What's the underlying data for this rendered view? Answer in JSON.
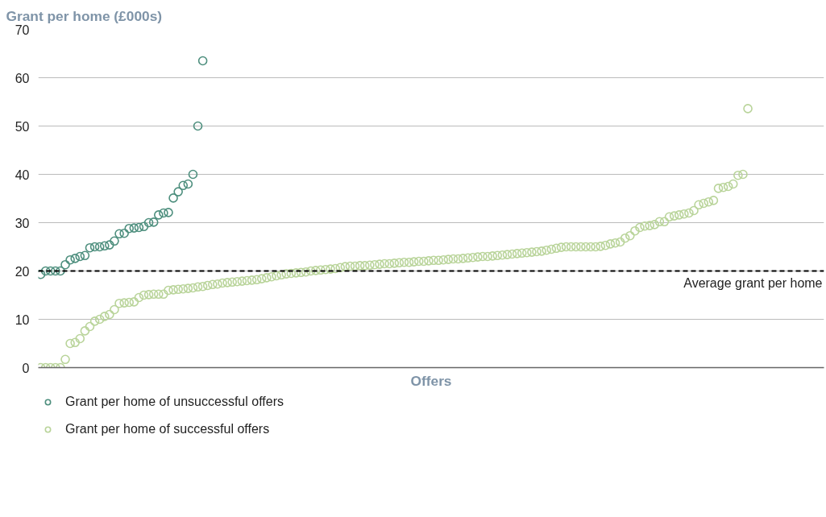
{
  "chart_data": {
    "type": "scatter",
    "title": "Grant per home (£000s)",
    "xlabel": "Offers",
    "categories": [
      null,
      null,
      null,
      null,
      null,
      null,
      null,
      null,
      null,
      null,
      null,
      null,
      null,
      null,
      null,
      null,
      null,
      null,
      null,
      null,
      null,
      null,
      null,
      null,
      null,
      null,
      null,
      null,
      null,
      null,
      null,
      null,
      null,
      null,
      null,
      null,
      null,
      null,
      null,
      null,
      null,
      null,
      null,
      null,
      null,
      null,
      null,
      null,
      null,
      null,
      null,
      null,
      null,
      null,
      null,
      null,
      null,
      null,
      null,
      null,
      null,
      null,
      null,
      null,
      null,
      null,
      null,
      null,
      null,
      null,
      null,
      null,
      null,
      null,
      null,
      null,
      null,
      null,
      null,
      null,
      null,
      null,
      null,
      null,
      null,
      null,
      null,
      null,
      null,
      null,
      null,
      null,
      null,
      null,
      null,
      null,
      null,
      null,
      null,
      null,
      null,
      null,
      null,
      null,
      null,
      null,
      null,
      null,
      null,
      null,
      null,
      null,
      null,
      null,
      null,
      null,
      null,
      null,
      null,
      null,
      null,
      null,
      null,
      null,
      null,
      null,
      null,
      null,
      null,
      null,
      null,
      null,
      null,
      null,
      null,
      null,
      null,
      null,
      null,
      null,
      null,
      null,
      null,
      null,
      null,
      null,
      null,
      null,
      null,
      null,
      null,
      null,
      null,
      null,
      null,
      null,
      null,
      null,
      null,
      null
    ],
    "series": [
      {
        "name": "Grant per home of unsuccessful offers",
        "color": "#4e8f7e",
        "values": [
          19.3,
          20,
          20,
          20,
          20,
          21.3,
          22.3,
          22.6,
          23,
          23.2,
          24.8,
          25,
          25,
          25.2,
          25.4,
          26.2,
          27.7,
          27.8,
          28.8,
          28.9,
          29,
          29.2,
          30,
          30.1,
          31.6,
          32,
          32.1,
          35.1,
          36.4,
          37.7,
          38,
          40,
          50,
          63.5,
          null,
          null,
          null,
          null,
          null,
          null,
          null,
          null,
          null,
          null,
          null,
          null,
          null,
          null,
          null,
          null,
          null,
          null,
          null,
          null,
          null,
          null,
          null,
          null,
          null,
          null,
          null,
          null,
          null,
          null,
          null,
          null,
          null,
          null,
          null,
          null,
          null,
          null,
          null,
          null,
          null,
          null,
          null,
          null,
          null,
          null,
          null,
          null,
          null,
          null,
          null,
          null,
          null,
          null,
          null,
          null,
          null,
          null,
          null,
          null,
          null,
          null,
          null,
          null,
          null,
          null,
          null,
          null,
          null,
          null,
          null,
          null,
          null,
          null,
          null,
          null,
          null,
          null,
          null,
          null,
          null,
          null,
          null,
          null,
          null,
          null,
          null,
          null,
          null,
          null,
          null,
          null,
          null,
          null,
          null,
          null,
          null,
          null,
          null,
          null,
          null,
          null,
          null,
          null,
          null,
          null,
          null,
          null,
          null,
          null,
          null,
          null,
          null,
          null,
          null,
          null,
          null,
          null,
          null,
          null,
          null,
          null,
          null,
          null,
          null,
          null
        ]
      },
      {
        "name": "Grant per home of successful offers",
        "color": "#b9d49a",
        "values": [
          0,
          0,
          0,
          0,
          0,
          1.7,
          5,
          5.2,
          6,
          7.6,
          8.5,
          9.6,
          10,
          10.6,
          11,
          12,
          13.3,
          13.4,
          13.5,
          13.6,
          14.5,
          15,
          15.1,
          15.2,
          15.2,
          15.2,
          16,
          16.1,
          16.2,
          16.3,
          16.4,
          16.5,
          16.7,
          16.8,
          17,
          17.2,
          17.3,
          17.5,
          17.6,
          17.7,
          17.8,
          17.9,
          18,
          18.1,
          18.2,
          18.4,
          18.6,
          18.8,
          19,
          19.2,
          19.4,
          19.5,
          19.6,
          19.7,
          19.8,
          20,
          20.1,
          20.2,
          20.3,
          20.4,
          20.5,
          20.7,
          20.9,
          21,
          21,
          21.1,
          21.1,
          21.2,
          21.3,
          21.4,
          21.5,
          21.5,
          21.6,
          21.7,
          21.8,
          21.8,
          21.9,
          22,
          22,
          22.1,
          22.2,
          22.2,
          22.3,
          22.4,
          22.5,
          22.5,
          22.6,
          22.7,
          22.8,
          22.9,
          23,
          23,
          23.1,
          23.2,
          23.3,
          23.4,
          23.5,
          23.6,
          23.7,
          23.8,
          23.9,
          24,
          24.1,
          24.3,
          24.5,
          24.7,
          24.9,
          25,
          25,
          25,
          25,
          25,
          25,
          25,
          25.1,
          25.3,
          25.6,
          25.8,
          26,
          26.8,
          27.3,
          28.3,
          29,
          29.3,
          29.4,
          29.6,
          30.2,
          30.2,
          31.2,
          31.4,
          31.6,
          31.8,
          32,
          32.5,
          33.7,
          34,
          34.3,
          34.6,
          37.1,
          37.3,
          37.5,
          38,
          39.8,
          40,
          53.6,
          null,
          null,
          null,
          null,
          null,
          null,
          null,
          null,
          null,
          null,
          null,
          null,
          null,
          null,
          null
        ]
      }
    ],
    "ylim": [
      0,
      70
    ],
    "yticks": [
      0,
      10,
      20,
      30,
      40,
      50,
      60,
      70
    ],
    "grid": "y",
    "marker": "circle",
    "legend": "bottom",
    "tick_labels": "y",
    "ref_lines": [
      {
        "axis": "y",
        "value": 20,
        "label": "Average grant per home",
        "color": "#000000",
        "line_style": "dashed"
      }
    ]
  }
}
